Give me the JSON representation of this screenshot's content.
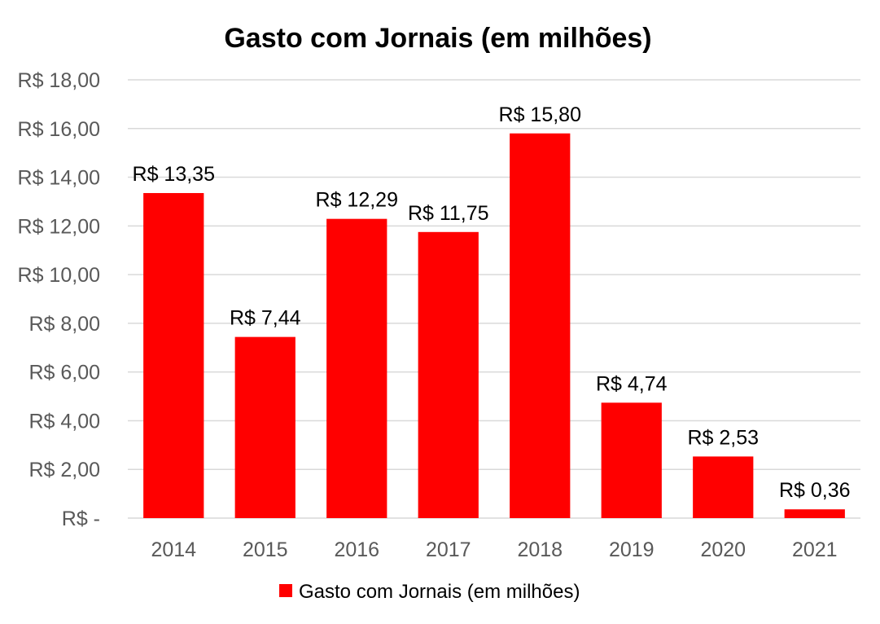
{
  "chart_data": {
    "type": "bar",
    "title": "Gasto com Jornais (em milhões)",
    "categories": [
      "2014",
      "2015",
      "2016",
      "2017",
      "2018",
      "2019",
      "2020",
      "2021"
    ],
    "series": [
      {
        "name": "Gasto com Jornais (em milhões)",
        "values": [
          13.35,
          7.44,
          12.29,
          11.75,
          15.8,
          4.74,
          2.53,
          0.36
        ],
        "labels": [
          "R$ 13,35",
          "R$ 7,44",
          "R$ 12,29",
          "R$ 11,75",
          "R$ 15,80",
          "R$ 4,74",
          "R$ 2,53",
          "R$ 0,36"
        ],
        "color": "#ff0000"
      }
    ],
    "ylim": [
      0,
      18
    ],
    "yticks": [
      {
        "value": 0,
        "label": "R$ -"
      },
      {
        "value": 2,
        "label": "R$ 2,00"
      },
      {
        "value": 4,
        "label": "R$ 4,00"
      },
      {
        "value": 6,
        "label": "R$ 6,00"
      },
      {
        "value": 8,
        "label": "R$ 8,00"
      },
      {
        "value": 10,
        "label": "R$ 10,00"
      },
      {
        "value": 12,
        "label": "R$ 12,00"
      },
      {
        "value": 14,
        "label": "R$ 14,00"
      },
      {
        "value": 16,
        "label": "R$ 16,00"
      },
      {
        "value": 18,
        "label": "R$ 18,00"
      }
    ],
    "grid": true,
    "legend": "bottom",
    "gridline_color": "#d9d9d9",
    "tick_color": "#595959"
  }
}
